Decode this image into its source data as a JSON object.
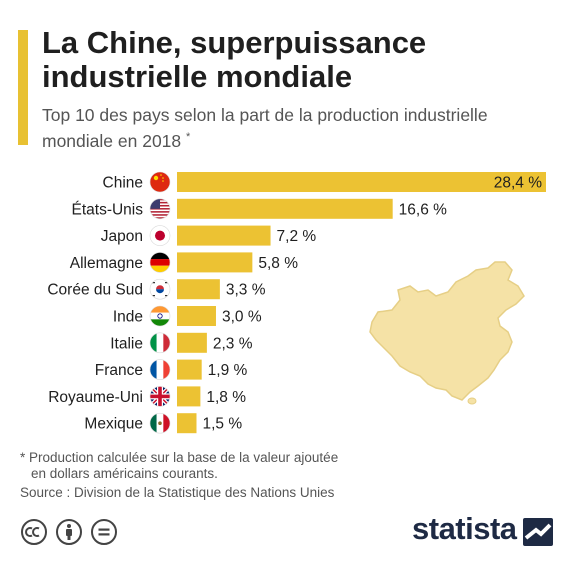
{
  "title": "La Chine, superpuissance industrielle mondiale",
  "subtitle": "Top 10 des pays selon la part de la production industrielle mondiale en 2018",
  "subtitle_marker": "*",
  "footnote_line1": "* Production calculée sur la base de la valeur ajoutée",
  "footnote_line2": "en dollars américains courants.",
  "source": "Source : Division de la Statistique des Nations Unies",
  "brand": "statista",
  "colors": {
    "bar": "#ecc233",
    "accent": "#e8c132",
    "map": "#f5e2a6",
    "map_stroke": "#e6cf86",
    "text": "#1f1f1f"
  },
  "icons": [
    "creative-commons-icon",
    "attribution-icon",
    "no-derivatives-icon",
    "statista-logo-icon"
  ],
  "chart_data": {
    "type": "bar",
    "orientation": "horizontal",
    "categories": [
      "Chine",
      "États-Unis",
      "Japon",
      "Allemagne",
      "Corée du Sud",
      "Inde",
      "Italie",
      "France",
      "Royaume-Uni",
      "Mexique"
    ],
    "values": [
      28.4,
      16.6,
      7.2,
      5.8,
      3.3,
      3.0,
      2.3,
      1.9,
      1.8,
      1.5
    ],
    "labels": [
      "28,4 %",
      "16,6 %",
      "7,2 %",
      "5,8 %",
      "3,3 %",
      "3,0 %",
      "2,3 %",
      "1,9 %",
      "1,8 %",
      "1,5 %"
    ],
    "flags": [
      "china-flag-icon",
      "usa-flag-icon",
      "japan-flag-icon",
      "germany-flag-icon",
      "south-korea-flag-icon",
      "india-flag-icon",
      "italy-flag-icon",
      "france-flag-icon",
      "uk-flag-icon",
      "mexico-flag-icon"
    ],
    "unit": "%"
  }
}
